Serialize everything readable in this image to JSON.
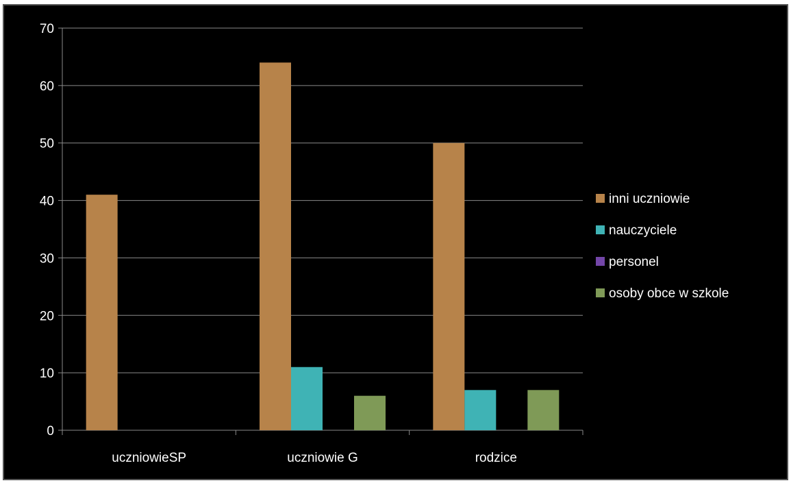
{
  "chart_data": {
    "type": "bar",
    "categories": [
      "uczniowieSP",
      "uczniowie G",
      "rodzice"
    ],
    "series": [
      {
        "name": "inni uczniowie",
        "color": "#b7834a",
        "values": [
          41,
          64,
          50
        ]
      },
      {
        "name": "nauczyciele",
        "color": "#3fb3b5",
        "values": [
          0,
          11,
          7
        ]
      },
      {
        "name": "personel",
        "color": "#7346a8",
        "values": [
          0,
          0,
          0
        ]
      },
      {
        "name": "osoby obce w szkole",
        "color": "#7f9a57",
        "values": [
          0,
          6,
          7
        ]
      }
    ],
    "ylim": [
      0,
      70
    ],
    "yticks": [
      0,
      10,
      20,
      30,
      40,
      50,
      60,
      70
    ],
    "grid": true,
    "legend": "right",
    "background": "#000000",
    "text_color": "#ffffff"
  }
}
